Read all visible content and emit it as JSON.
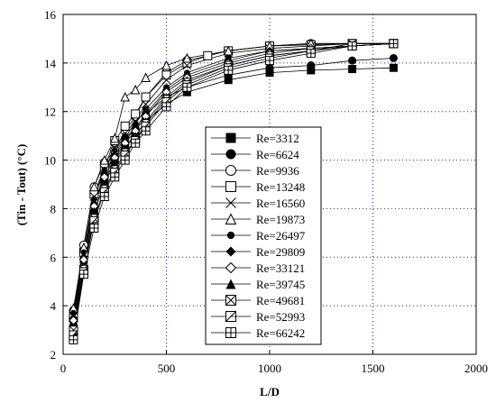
{
  "chart_data": {
    "type": "line",
    "xlabel": "L/D",
    "ylabel": "(Tin - Tout)   (°C)",
    "xlim": [
      0,
      2000
    ],
    "ylim": [
      2,
      16
    ],
    "xticks": [
      0,
      500,
      1000,
      1500,
      2000
    ],
    "yticks": [
      2,
      4,
      6,
      8,
      10,
      12,
      14,
      16
    ],
    "grid": true,
    "legend_position": "center",
    "series": [
      {
        "name": "Re=3312",
        "marker": "filled-square",
        "x": [
          50,
          100,
          150,
          200,
          250,
          300,
          350,
          400,
          500,
          600,
          800,
          1000,
          1200,
          1400,
          1600
        ],
        "y": [
          2.9,
          5.5,
          7.8,
          9.1,
          10.0,
          10.6,
          11.0,
          11.6,
          12.3,
          12.8,
          13.3,
          13.6,
          13.7,
          13.75,
          13.8
        ]
      },
      {
        "name": "Re=6624",
        "marker": "filled-circle",
        "x": [
          50,
          100,
          150,
          200,
          250,
          300,
          350,
          400,
          500,
          600,
          800,
          1000,
          1200,
          1400,
          1600
        ],
        "y": [
          3.2,
          5.8,
          8.1,
          9.4,
          10.3,
          10.9,
          11.3,
          11.9,
          12.6,
          13.0,
          13.5,
          13.8,
          13.9,
          14.1,
          14.2
        ]
      },
      {
        "name": "Re=9936",
        "marker": "open-circle",
        "x": [
          50,
          100,
          150,
          200,
          250,
          300,
          350,
          400,
          500,
          600,
          800,
          1000,
          1200,
          1400,
          1600
        ],
        "y": [
          3.8,
          6.5,
          8.9,
          9.9,
          10.4,
          11.2,
          11.8,
          12.6,
          13.6,
          14.1,
          14.5,
          14.7,
          14.8,
          14.8,
          14.8
        ]
      },
      {
        "name": "Re=13248",
        "marker": "open-square",
        "x": [
          50,
          100,
          150,
          200,
          250,
          300,
          350,
          400,
          500,
          600,
          700,
          800,
          1000,
          1200,
          1400,
          1600
        ],
        "y": [
          3.5,
          6.2,
          8.6,
          9.7,
          10.8,
          11.4,
          11.9,
          12.6,
          13.5,
          14.0,
          14.3,
          14.5,
          14.7,
          14.75,
          14.8,
          14.8
        ]
      },
      {
        "name": "Re=16560",
        "marker": "x",
        "x": [
          50,
          100,
          150,
          200,
          250,
          300,
          350,
          400,
          500,
          600,
          800,
          1000,
          1200,
          1400,
          1600
        ],
        "y": [
          3.6,
          6.1,
          8.5,
          9.6,
          10.5,
          11.1,
          11.6,
          12.3,
          13.3,
          13.9,
          14.4,
          14.6,
          14.7,
          14.8,
          14.8
        ]
      },
      {
        "name": "Re=19873",
        "marker": "open-triangle",
        "x": [
          50,
          100,
          150,
          200,
          250,
          300,
          350,
          400,
          500,
          600,
          800,
          1000,
          1200,
          1400,
          1600
        ],
        "y": [
          3.9,
          6.4,
          8.9,
          10.0,
          10.9,
          12.6,
          12.9,
          13.4,
          13.9,
          14.2,
          14.5,
          14.7,
          14.8,
          14.8,
          14.8
        ]
      },
      {
        "name": "Re=26497",
        "marker": "filled-small-circle",
        "x": [
          50,
          100,
          150,
          200,
          250,
          300,
          350,
          400,
          500,
          600,
          800,
          1000,
          1200,
          1400,
          1600
        ],
        "y": [
          3.7,
          6.2,
          8.4,
          9.6,
          10.4,
          11.0,
          11.5,
          12.1,
          13.0,
          13.6,
          14.2,
          14.5,
          14.6,
          14.7,
          14.8
        ]
      },
      {
        "name": "Re=29809",
        "marker": "filled-diamond",
        "x": [
          50,
          100,
          150,
          200,
          250,
          300,
          350,
          400,
          500,
          600,
          800,
          1000,
          1200,
          1400,
          1600
        ],
        "y": [
          3.5,
          6.0,
          8.2,
          9.4,
          10.2,
          10.8,
          11.3,
          11.9,
          12.9,
          13.5,
          14.1,
          14.5,
          14.6,
          14.7,
          14.8
        ]
      },
      {
        "name": "Re=33121",
        "marker": "open-diamond",
        "x": [
          50,
          100,
          150,
          200,
          250,
          300,
          350,
          400,
          500,
          600,
          800,
          1000,
          1200,
          1400,
          1600
        ],
        "y": [
          3.4,
          5.9,
          8.1,
          9.3,
          10.1,
          10.7,
          11.2,
          11.8,
          12.8,
          13.4,
          14.0,
          14.4,
          14.6,
          14.7,
          14.8
        ]
      },
      {
        "name": "Re=39745",
        "marker": "filled-triangle",
        "x": [
          50,
          100,
          150,
          200,
          250,
          300,
          350,
          400,
          500,
          600,
          800,
          1000,
          1200,
          1400,
          1600
        ],
        "y": [
          3.1,
          5.6,
          7.9,
          9.0,
          9.9,
          10.5,
          11.0,
          11.6,
          12.6,
          13.3,
          13.9,
          14.3,
          14.5,
          14.7,
          14.8
        ]
      },
      {
        "name": "Re=49681",
        "marker": "crossed-square",
        "x": [
          50,
          100,
          150,
          200,
          250,
          300,
          350,
          400,
          500,
          600,
          800,
          1000,
          1200,
          1400,
          1600
        ],
        "y": [
          3.0,
          5.5,
          7.6,
          8.8,
          9.6,
          10.3,
          10.8,
          11.5,
          12.5,
          13.2,
          13.9,
          14.3,
          14.5,
          14.8,
          14.8
        ]
      },
      {
        "name": "Re=52993",
        "marker": "half-square",
        "x": [
          50,
          100,
          150,
          200,
          250,
          300,
          350,
          400,
          500,
          600,
          800,
          1000,
          1200,
          1400,
          1600
        ],
        "y": [
          2.8,
          5.4,
          7.5,
          8.7,
          9.5,
          10.2,
          10.8,
          11.4,
          12.4,
          13.1,
          13.8,
          14.2,
          14.5,
          14.7,
          14.8
        ]
      },
      {
        "name": "Re=66242",
        "marker": "grid-square",
        "x": [
          50,
          100,
          150,
          200,
          250,
          300,
          350,
          400,
          500,
          600,
          800,
          1000,
          1200,
          1400,
          1600
        ],
        "y": [
          2.6,
          5.3,
          7.2,
          8.5,
          9.3,
          10.0,
          10.7,
          11.2,
          12.2,
          13.0,
          13.7,
          14.1,
          14.4,
          14.7,
          14.8
        ]
      }
    ]
  }
}
